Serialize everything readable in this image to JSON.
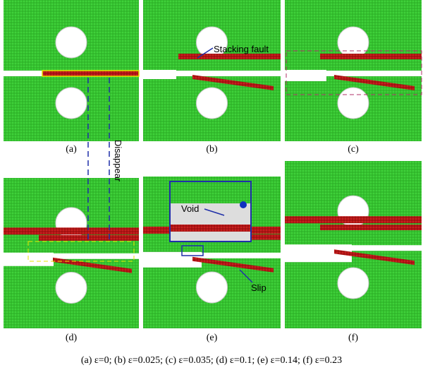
{
  "panels": [
    {
      "label": "(a)"
    },
    {
      "label": "(b)"
    },
    {
      "label": "(c)"
    },
    {
      "label": "(d)"
    },
    {
      "label": "(e)"
    },
    {
      "label": "(f)"
    }
  ],
  "annotations": {
    "stacking_fault": "Stacking fault",
    "disappear": "Disappear",
    "void": "Void",
    "slip": "Slip"
  },
  "caption": "(a) ε=0; (b) ε=0.025; (c) ε=0.035; (d) ε=0.1; (e) ε=0.14; (f) ε=0.23"
}
